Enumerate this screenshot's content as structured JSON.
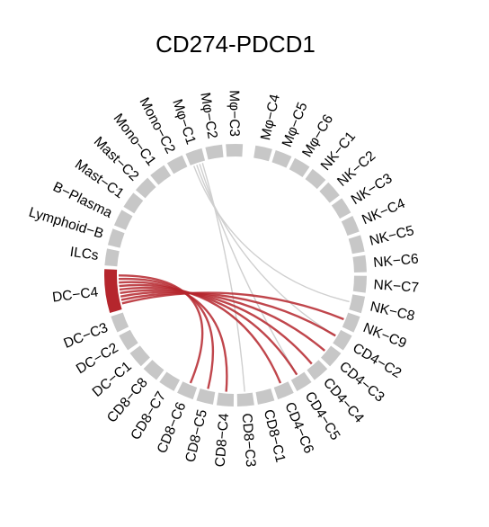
{
  "chart_data": {
    "type": "chord",
    "title": "CD274-PDCD1",
    "colors": {
      "sector": "#c7c7c7",
      "highlight_sector": "#b5262d",
      "strong_link": "#b5262d",
      "weak_link": "#cfcfcf"
    },
    "sectors": [
      {
        "name": "Mφ−C4",
        "highlight": false
      },
      {
        "name": "Mφ−C5",
        "highlight": false
      },
      {
        "name": "Mφ−C6",
        "highlight": false
      },
      {
        "name": "NK−C1",
        "highlight": false
      },
      {
        "name": "NK−C2",
        "highlight": false
      },
      {
        "name": "NK−C3",
        "highlight": false
      },
      {
        "name": "NK−C4",
        "highlight": false
      },
      {
        "name": "NK−C5",
        "highlight": false
      },
      {
        "name": "NK−C6",
        "highlight": false
      },
      {
        "name": "NK−C7",
        "highlight": false
      },
      {
        "name": "NK−C8",
        "highlight": false
      },
      {
        "name": "NK−C9",
        "highlight": false
      },
      {
        "name": "CD4−C2",
        "highlight": false
      },
      {
        "name": "CD4−C3",
        "highlight": false
      },
      {
        "name": "CD4−C4",
        "highlight": false
      },
      {
        "name": "CD4−C5",
        "highlight": false
      },
      {
        "name": "CD4−C6",
        "highlight": false
      },
      {
        "name": "CD8−C1",
        "highlight": false
      },
      {
        "name": "CD8−C3",
        "highlight": false
      },
      {
        "name": "CD8−C4",
        "highlight": false
      },
      {
        "name": "CD8−C5",
        "highlight": false
      },
      {
        "name": "CD8−C6",
        "highlight": false
      },
      {
        "name": "CD8−C7",
        "highlight": false
      },
      {
        "name": "CD8−C8",
        "highlight": false
      },
      {
        "name": "DC−C1",
        "highlight": false
      },
      {
        "name": "DC−C2",
        "highlight": false
      },
      {
        "name": "DC−C3",
        "highlight": false
      },
      {
        "name": "DC−C4",
        "highlight": true
      },
      {
        "name": "ILCs",
        "highlight": false
      },
      {
        "name": "Lymphoid−B",
        "highlight": false
      },
      {
        "name": "B−Plasma",
        "highlight": false
      },
      {
        "name": "Mast−C1",
        "highlight": false
      },
      {
        "name": "Mast−C2",
        "highlight": false
      },
      {
        "name": "Mono−C1",
        "highlight": false
      },
      {
        "name": "Mono−C2",
        "highlight": false
      },
      {
        "name": "Mφ−C1",
        "highlight": false
      },
      {
        "name": "Mφ−C2",
        "highlight": false
      },
      {
        "name": "Mφ−C3",
        "highlight": false
      }
    ],
    "links": [
      {
        "source": "DC−C4",
        "target": "NK−C9",
        "strength": "strong"
      },
      {
        "source": "DC−C4",
        "target": "CD4−C2",
        "strength": "strong"
      },
      {
        "source": "DC−C4",
        "target": "CD4−C3",
        "strength": "strong"
      },
      {
        "source": "DC−C4",
        "target": "CD4−C4",
        "strength": "strong"
      },
      {
        "source": "DC−C4",
        "target": "CD4−C5",
        "strength": "strong"
      },
      {
        "source": "DC−C4",
        "target": "CD4−C6",
        "strength": "strong"
      },
      {
        "source": "DC−C4",
        "target": "CD8−C4",
        "strength": "strong"
      },
      {
        "source": "DC−C4",
        "target": "CD8−C5",
        "strength": "strong"
      },
      {
        "source": "DC−C4",
        "target": "CD8−C6",
        "strength": "strong"
      },
      {
        "source": "Mφ−C1",
        "target": "NK−C8",
        "strength": "weak"
      },
      {
        "source": "Mφ−C1",
        "target": "CD4−C2",
        "strength": "weak"
      },
      {
        "source": "Mφ−C1",
        "target": "CD4−C5",
        "strength": "weak"
      },
      {
        "source": "Mφ−C1",
        "target": "CD8−C3",
        "strength": "weak"
      }
    ]
  }
}
